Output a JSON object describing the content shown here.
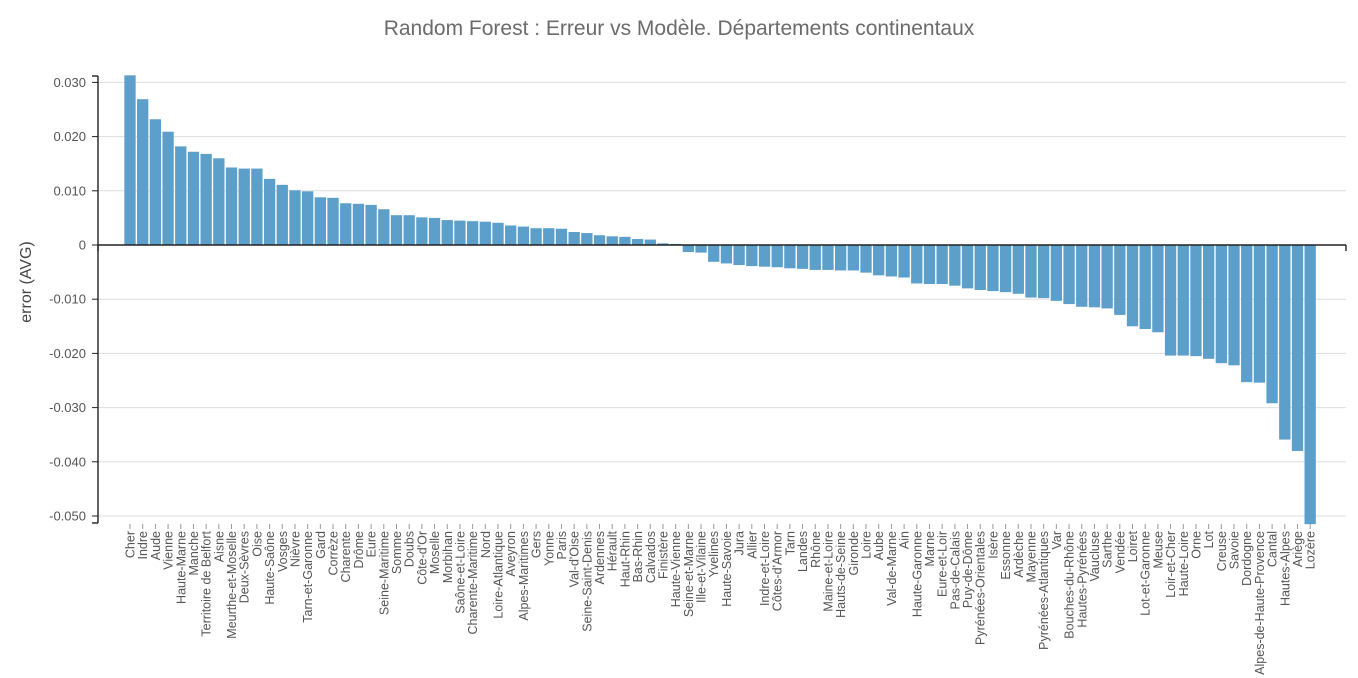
{
  "chart_data": {
    "type": "bar",
    "title": "Random Forest : Erreur vs Modèle. Départements continentaux",
    "xlabel": "",
    "ylabel": "error (AVG)",
    "ylim": [
      -0.052,
      0.031
    ],
    "yticks": [
      0.03,
      0.02,
      0.01,
      0,
      -0.01,
      -0.02,
      -0.03,
      -0.04,
      -0.05
    ],
    "ytick_labels": [
      "0.030",
      "0.020",
      "0.010",
      "0",
      "-0.010",
      "-0.020",
      "-0.030",
      "-0.040",
      "-0.050"
    ],
    "grid": true,
    "bar_color": "#5b9fca",
    "categories": [
      "Cher",
      "Indre",
      "Aude",
      "Vienne",
      "Haute-Marne",
      "Manche",
      "Territoire de Belfort",
      "Aisne",
      "Meurthe-et-Moselle",
      "Deux-Sèvres",
      "Oise",
      "Haute-Saône",
      "Vosges",
      "Nièvre",
      "Tarn-et-Garonne",
      "Gard",
      "Corrèze",
      "Charente",
      "Drôme",
      "Eure",
      "Seine-Maritime",
      "Somme",
      "Doubs",
      "Côte-d'Or",
      "Moselle",
      "Morbihan",
      "Saône-et-Loire",
      "Charente-Maritime",
      "Nord",
      "Loire-Atlantique",
      "Aveyron",
      "Alpes-Maritimes",
      "Gers",
      "Yonne",
      "Paris",
      "Val-d'Oise",
      "Seine-Saint-Denis",
      "Ardennes",
      "Hérault",
      "Haut-Rhin",
      "Bas-Rhin",
      "Calvados",
      "Finistère",
      "Haute-Vienne",
      "Seine-et-Marne",
      "Ille-et-Vilaine",
      "Yvelines",
      "Haute-Savoie",
      "Jura",
      "Allier",
      "Indre-et-Loire",
      "Côtes-d'Armor",
      "Tarn",
      "Landes",
      "Rhône",
      "Maine-et-Loire",
      "Hauts-de-Seine",
      "Gironde",
      "Loire",
      "Aube",
      "Val-de-Marne",
      "Ain",
      "Haute-Garonne",
      "Marne",
      "Eure-et-Loir",
      "Pas-de-Calais",
      "Puy-de-Dôme",
      "Pyrénées-Orientales",
      "Isère",
      "Essonne",
      "Ardèche",
      "Mayenne",
      "Pyrénées-Atlantiques",
      "Var",
      "Bouches-du-Rhône",
      "Hautes-Pyrénées",
      "Vaucluse",
      "Sarthe",
      "Vendée",
      "Loiret",
      "Lot-et-Garonne",
      "Meuse",
      "Loir-et-Cher",
      "Haute-Loire",
      "Orne",
      "Lot",
      "Creuse",
      "Savoie",
      "Dordogne",
      "Alpes-de-Haute-Provence",
      "Cantal",
      "Hautes-Alpes",
      "Ariège",
      "Lozère"
    ],
    "values": [
      0.0313,
      0.0269,
      0.0232,
      0.0209,
      0.0182,
      0.0172,
      0.0168,
      0.016,
      0.0143,
      0.0141,
      0.0141,
      0.0122,
      0.0111,
      0.0101,
      0.0099,
      0.0088,
      0.0087,
      0.0077,
      0.0076,
      0.0074,
      0.0066,
      0.0055,
      0.0055,
      0.0051,
      0.005,
      0.0046,
      0.0045,
      0.0044,
      0.0043,
      0.0041,
      0.0036,
      0.0034,
      0.0031,
      0.0031,
      0.003,
      0.0024,
      0.0022,
      0.0018,
      0.0016,
      0.0015,
      0.0011,
      0.001,
      0.0003,
      0.0002,
      -0.0013,
      -0.0014,
      -0.0031,
      -0.0034,
      -0.0037,
      -0.0039,
      -0.004,
      -0.0041,
      -0.0043,
      -0.0044,
      -0.0046,
      -0.0046,
      -0.0047,
      -0.0047,
      -0.0051,
      -0.0056,
      -0.0058,
      -0.006,
      -0.0071,
      -0.0072,
      -0.0072,
      -0.0075,
      -0.008,
      -0.0083,
      -0.0085,
      -0.0087,
      -0.009,
      -0.0097,
      -0.0098,
      -0.0103,
      -0.0109,
      -0.0114,
      -0.0115,
      -0.0117,
      -0.0129,
      -0.015,
      -0.0155,
      -0.0161,
      -0.0204,
      -0.0204,
      -0.0205,
      -0.021,
      -0.0218,
      -0.0222,
      -0.0253,
      -0.0254,
      -0.0292,
      -0.0359,
      -0.038,
      -0.0515
    ]
  }
}
